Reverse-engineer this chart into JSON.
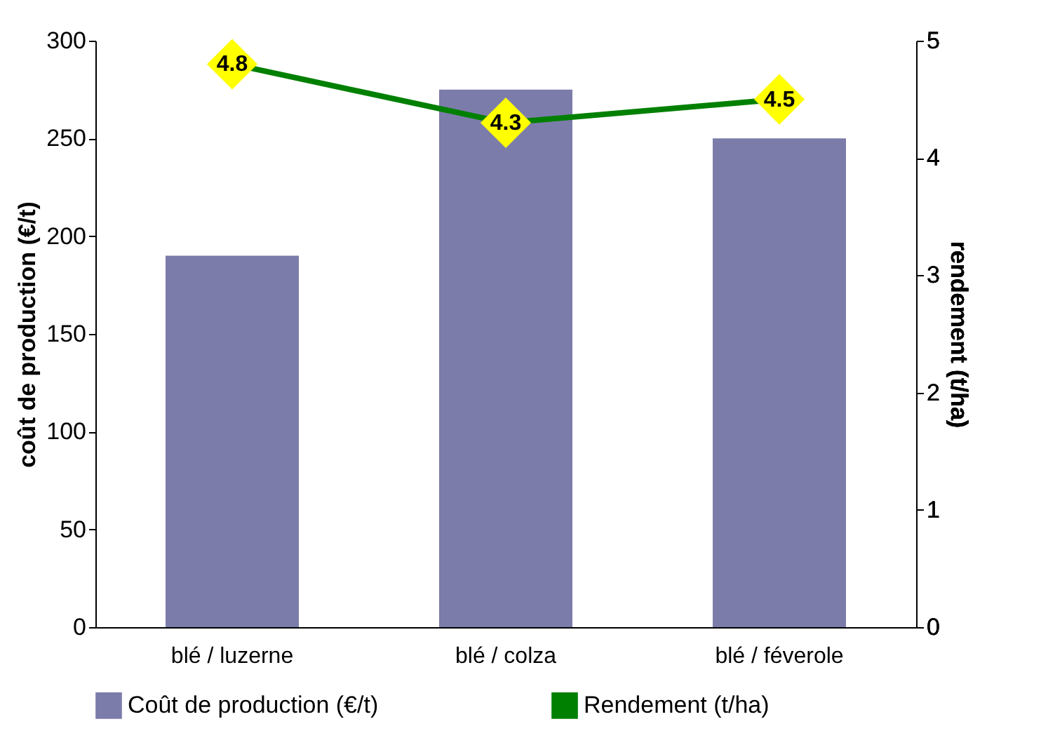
{
  "chart_data": {
    "type": "bar",
    "categories": [
      "blé / luzerne",
      "blé / colza",
      "blé / féverole"
    ],
    "ylabel": "coût de production (€/t)",
    "y2label": "rendement (t/ha)",
    "ylim": [
      0,
      300
    ],
    "yticks": [
      0,
      50,
      100,
      150,
      200,
      250,
      300
    ],
    "y2lim": [
      0,
      5
    ],
    "y2ticks": [
      0,
      1,
      2,
      3,
      4,
      5
    ],
    "grid": false,
    "legend": "bottom",
    "series": [
      {
        "name": "Coût de production (€/t)",
        "color": "#7c7cab",
        "values": [
          190,
          275,
          250
        ]
      },
      {
        "name": "Rendement (t/ha)",
        "type": "line",
        "axis": "y2",
        "color": "#008000",
        "marker": "diamond",
        "values": [
          4.8,
          4.3,
          4.5
        ],
        "value_labels": [
          "4.8",
          "4.3",
          "4.5"
        ]
      }
    ]
  }
}
